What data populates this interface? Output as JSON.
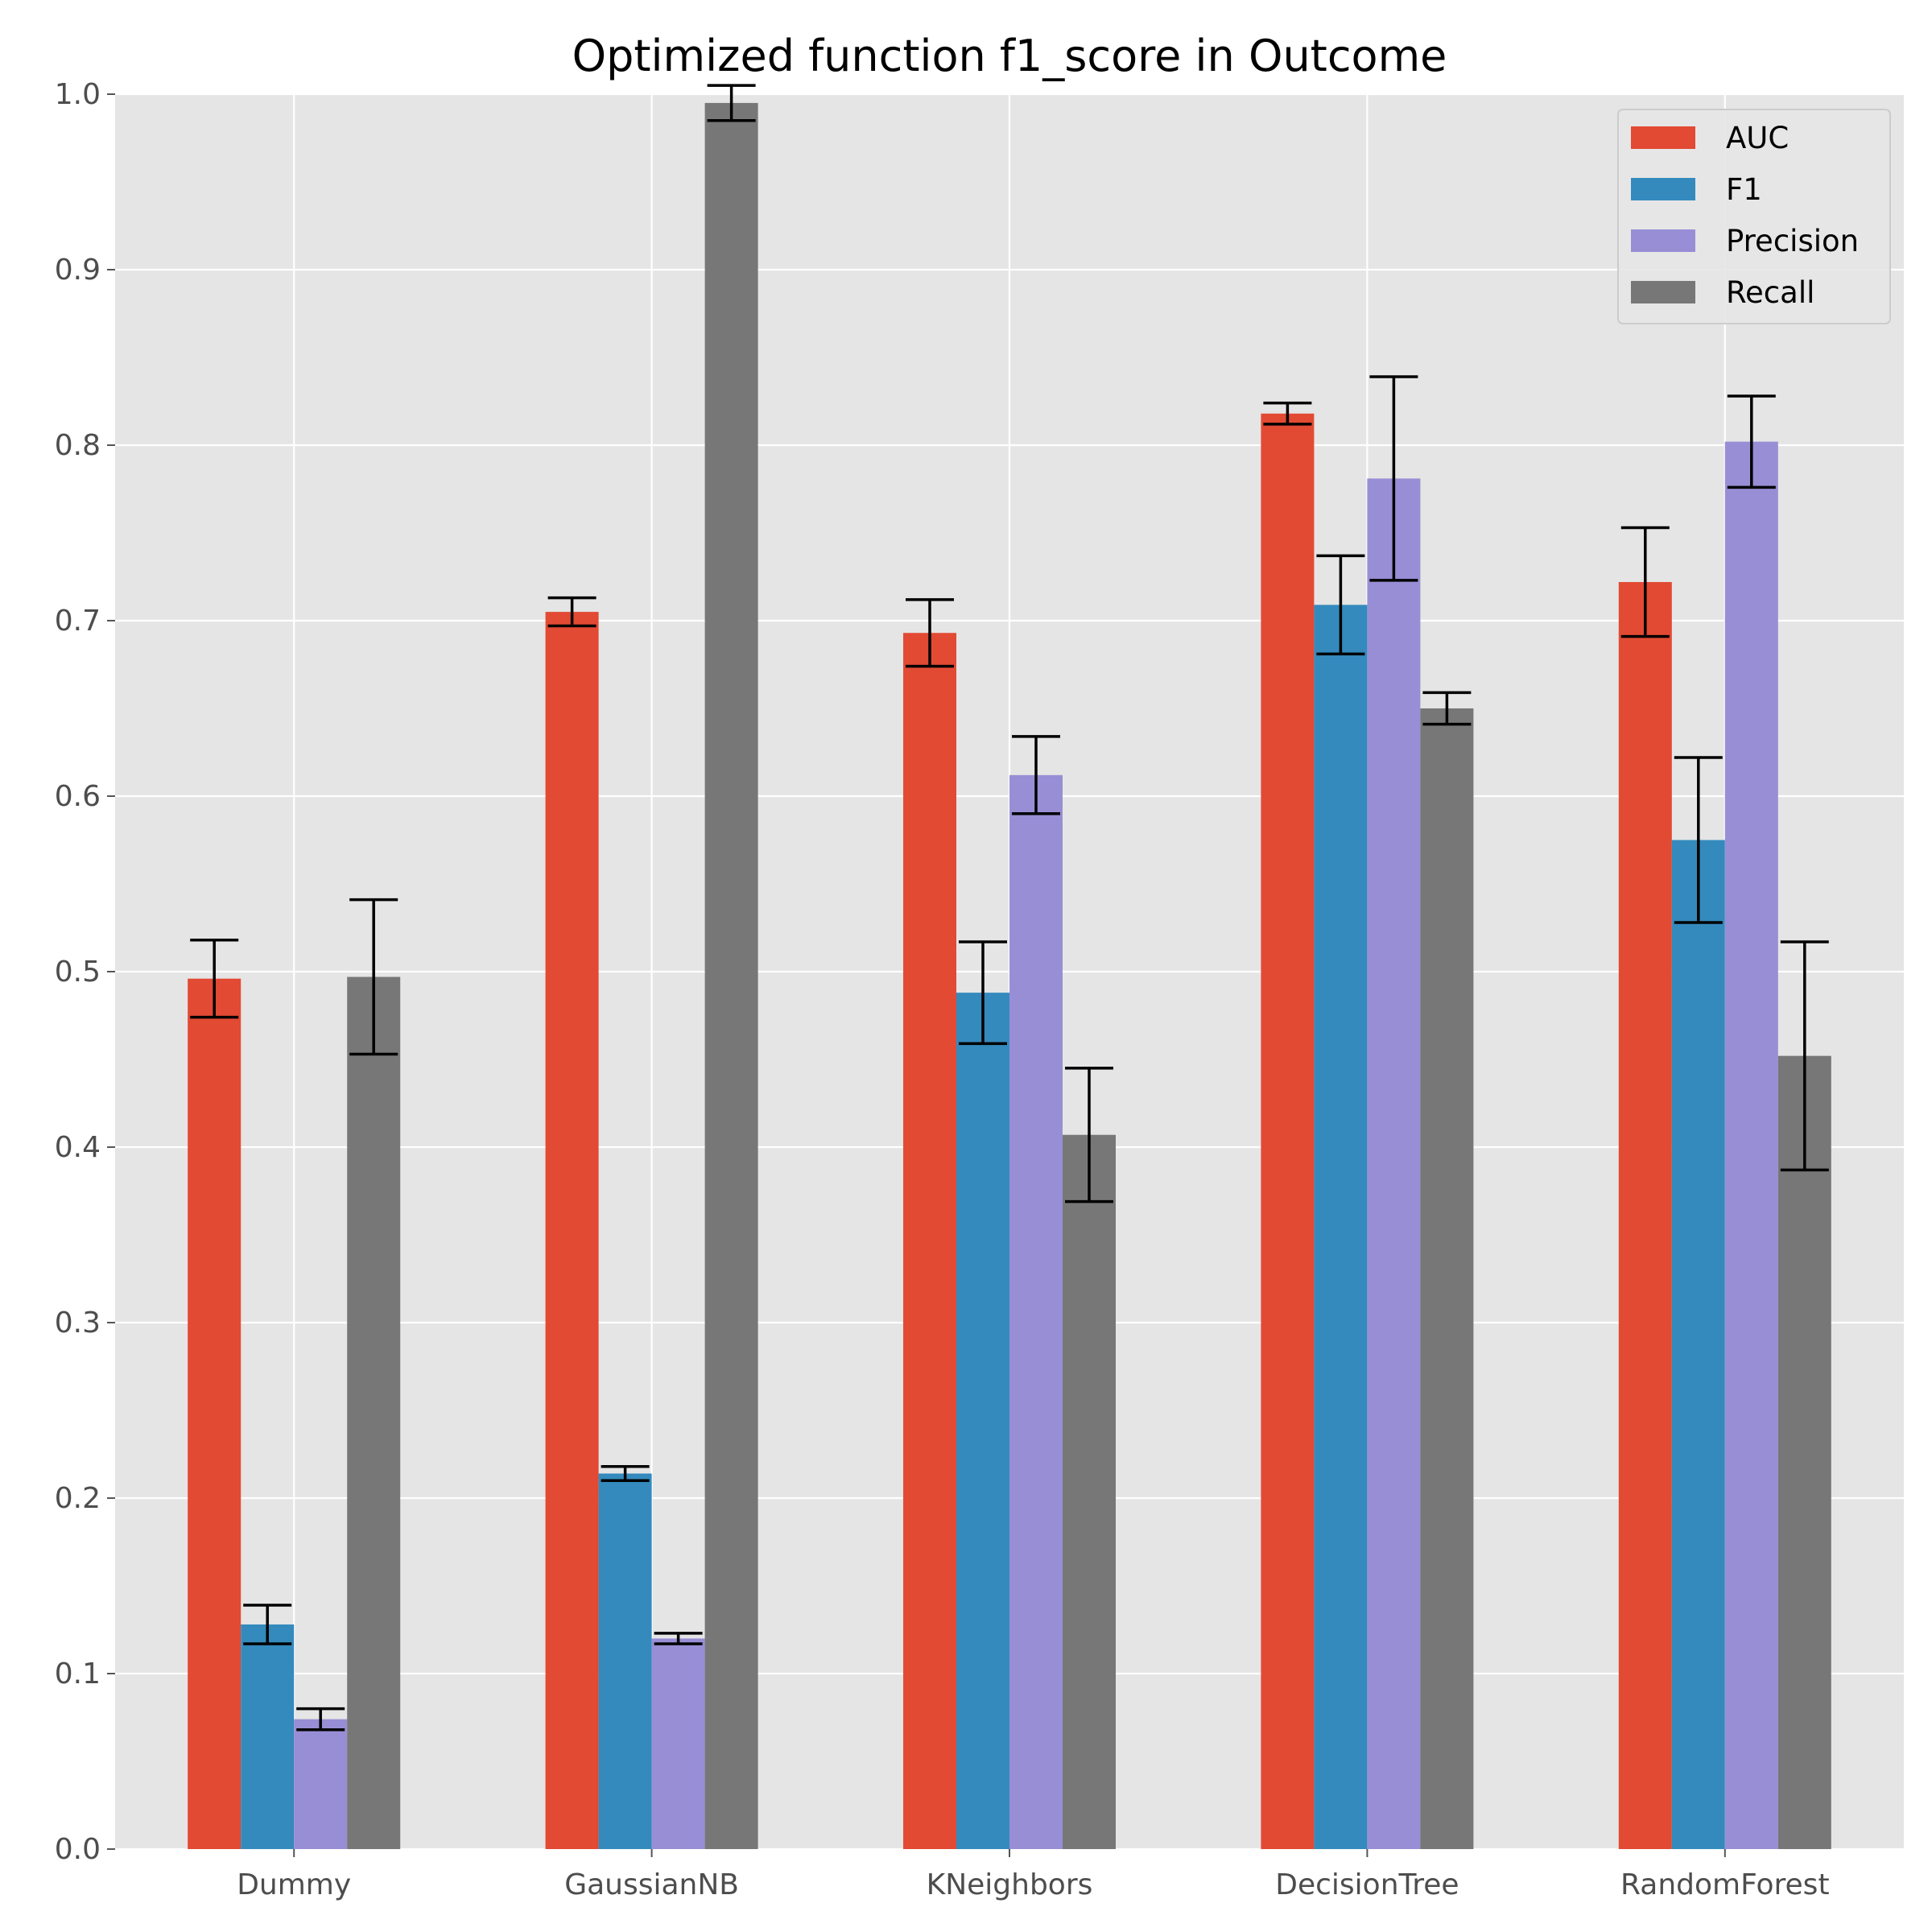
{
  "chart_data": {
    "type": "bar",
    "title": "Optimized function f1_score in Outcome",
    "xlabel": "",
    "ylabel": "",
    "ylim": [
      0,
      1.0
    ],
    "yticks": [
      "0.0",
      "0.1",
      "0.2",
      "0.3",
      "0.4",
      "0.5",
      "0.6",
      "0.7",
      "0.8",
      "0.9",
      "1.0"
    ],
    "grid": true,
    "legend_position": "top-right",
    "categories": [
      "Dummy",
      "GaussianNB",
      "KNeighbors",
      "DecisionTree",
      "RandomForest"
    ],
    "series": [
      {
        "name": "AUC",
        "color": "#E24A33",
        "values": [
          0.496,
          0.705,
          0.693,
          0.818,
          0.722
        ],
        "errors": [
          0.022,
          0.008,
          0.019,
          0.006,
          0.031
        ]
      },
      {
        "name": "F1",
        "color": "#348ABD",
        "values": [
          0.128,
          0.214,
          0.488,
          0.709,
          0.575
        ],
        "errors": [
          0.011,
          0.004,
          0.029,
          0.028,
          0.047
        ]
      },
      {
        "name": "Precision",
        "color": "#988ED5",
        "values": [
          0.074,
          0.12,
          0.612,
          0.781,
          0.802
        ],
        "errors": [
          0.006,
          0.003,
          0.022,
          0.058,
          0.026
        ]
      },
      {
        "name": "Recall",
        "color": "#777777",
        "values": [
          0.497,
          0.995,
          0.407,
          0.65,
          0.452
        ],
        "errors": [
          0.044,
          0.01,
          0.038,
          0.009,
          0.065
        ]
      }
    ]
  }
}
